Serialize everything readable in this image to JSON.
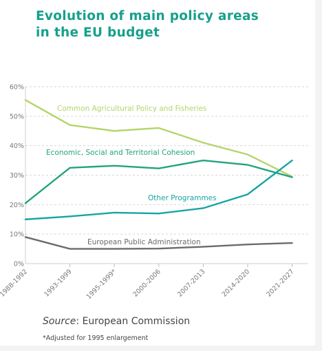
{
  "title_line1": "Evolution of main policy areas",
  "title_line2": "in the EU budget",
  "source_prefix": "Source",
  "source_suffix": ": European Commission",
  "footnote": "*Adjusted for 1995 enlargement",
  "chart_data": {
    "type": "line",
    "categories": [
      "1988-1992",
      "1993-1999",
      "1995-1999*",
      "2000-2006",
      "2007-2013",
      "2014-2020",
      "2021-2027"
    ],
    "y_ticks": [
      "0%",
      "10%",
      "20%",
      "30%",
      "40%",
      "50%",
      "60%"
    ],
    "ylim": [
      0,
      60
    ],
    "grid": true,
    "legend": "inline labels",
    "series": [
      {
        "name": "Common Agricultural Policy and Fisheries",
        "color": "#b5d46a",
        "values": [
          55.5,
          47.0,
          45.0,
          46.0,
          41.0,
          37.0,
          29.5
        ]
      },
      {
        "name": "Economic, Social and Territorial Cohesion",
        "color": "#22a37f",
        "values": [
          20.5,
          32.5,
          33.2,
          32.3,
          35.0,
          33.5,
          29.3
        ]
      },
      {
        "name": "Other Programmes",
        "color": "#16a4a4",
        "values": [
          15.0,
          16.0,
          17.3,
          17.0,
          18.8,
          23.5,
          35.0
        ]
      },
      {
        "name": "European Public Administration",
        "color": "#6b6b6b",
        "values": [
          9.0,
          5.0,
          5.0,
          5.1,
          5.7,
          6.5,
          7.0
        ]
      }
    ]
  }
}
